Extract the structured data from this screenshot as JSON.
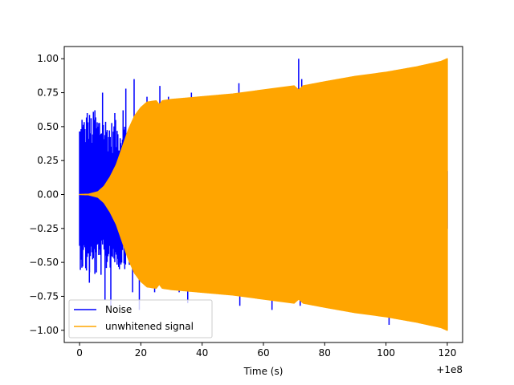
{
  "chart_data": {
    "type": "line",
    "title": "",
    "xlabel": "Time (s)",
    "ylabel": "",
    "x_offset_label": "+1e8",
    "xlim": [
      -5,
      125
    ],
    "ylim": [
      -1.09,
      1.09
    ],
    "xticks": [
      0,
      20,
      40,
      60,
      80,
      100,
      120
    ],
    "xtick_labels": [
      "0",
      "20",
      "40",
      "60",
      "80",
      "100",
      "120"
    ],
    "yticks": [
      -1.0,
      -0.75,
      -0.5,
      -0.25,
      0.0,
      0.25,
      0.5,
      0.75,
      1.0
    ],
    "ytick_labels": [
      "−1.00",
      "−0.75",
      "−0.50",
      "−0.25",
      "0.00",
      "0.25",
      "0.50",
      "0.75",
      "1.00"
    ],
    "grid": false,
    "legend_position": "lower-left",
    "series": [
      {
        "name": "Noise",
        "color": "#0000ff",
        "x_range": [
          0,
          120
        ],
        "envelope": [
          [
            0,
            0.55
          ],
          [
            2,
            0.6
          ],
          [
            5,
            0.62
          ],
          [
            8,
            0.6
          ],
          [
            10,
            0.55
          ],
          [
            12,
            0.55
          ],
          [
            15,
            0.55
          ],
          [
            20,
            0.5
          ],
          [
            30,
            0.45
          ],
          [
            40,
            0.4
          ],
          [
            60,
            0.3
          ],
          [
            80,
            0.3
          ],
          [
            100,
            0.3
          ],
          [
            120,
            0.3
          ]
        ],
        "spikes": [
          [
            0.8,
            0.55
          ],
          [
            2.5,
            0.6
          ],
          [
            3.2,
            -0.65
          ],
          [
            5.0,
            0.62
          ],
          [
            7.5,
            0.75
          ],
          [
            8.3,
            -0.78
          ],
          [
            10.2,
            -0.82
          ],
          [
            11.5,
            0.6
          ],
          [
            13.0,
            -0.55
          ],
          [
            14.2,
            0.62
          ],
          [
            15.1,
            0.78
          ],
          [
            17.3,
            -0.72
          ],
          [
            17.8,
            0.85
          ],
          [
            19.5,
            -0.85
          ],
          [
            22.0,
            0.72
          ],
          [
            24.5,
            -0.72
          ],
          [
            26.2,
            0.8
          ],
          [
            29.0,
            0.72
          ],
          [
            32.5,
            -0.72
          ],
          [
            35.3,
            -0.8
          ],
          [
            36.5,
            0.75
          ],
          [
            41.5,
            -0.7
          ],
          [
            44.0,
            0.73
          ],
          [
            52.0,
            0.82
          ],
          [
            52.3,
            -0.82
          ],
          [
            58.5,
            0.72
          ],
          [
            60.0,
            -0.75
          ],
          [
            62.8,
            -0.85
          ],
          [
            66.2,
            0.75
          ],
          [
            71.5,
            1.0
          ],
          [
            72.0,
            -0.82
          ],
          [
            72.5,
            0.85
          ],
          [
            78.5,
            -0.7
          ],
          [
            101.0,
            -0.96
          ]
        ]
      },
      {
        "name": "unwhitened signal",
        "color": "#ffa500",
        "x_range": [
          0,
          120
        ],
        "envelope": [
          [
            0,
            0.0
          ],
          [
            3,
            0.002
          ],
          [
            6,
            0.02
          ],
          [
            8,
            0.06
          ],
          [
            10,
            0.13
          ],
          [
            12,
            0.22
          ],
          [
            14,
            0.35
          ],
          [
            16,
            0.48
          ],
          [
            18,
            0.58
          ],
          [
            20,
            0.64
          ],
          [
            22,
            0.68
          ],
          [
            25,
            0.69
          ],
          [
            26,
            0.66
          ],
          [
            27,
            0.69
          ],
          [
            30,
            0.7
          ],
          [
            40,
            0.72
          ],
          [
            50,
            0.74
          ],
          [
            60,
            0.77
          ],
          [
            70,
            0.8
          ],
          [
            71.5,
            0.77
          ],
          [
            73,
            0.8
          ],
          [
            80,
            0.83
          ],
          [
            90,
            0.87
          ],
          [
            100,
            0.9
          ],
          [
            110,
            0.94
          ],
          [
            118,
            0.98
          ],
          [
            120,
            1.0
          ]
        ]
      }
    ]
  }
}
